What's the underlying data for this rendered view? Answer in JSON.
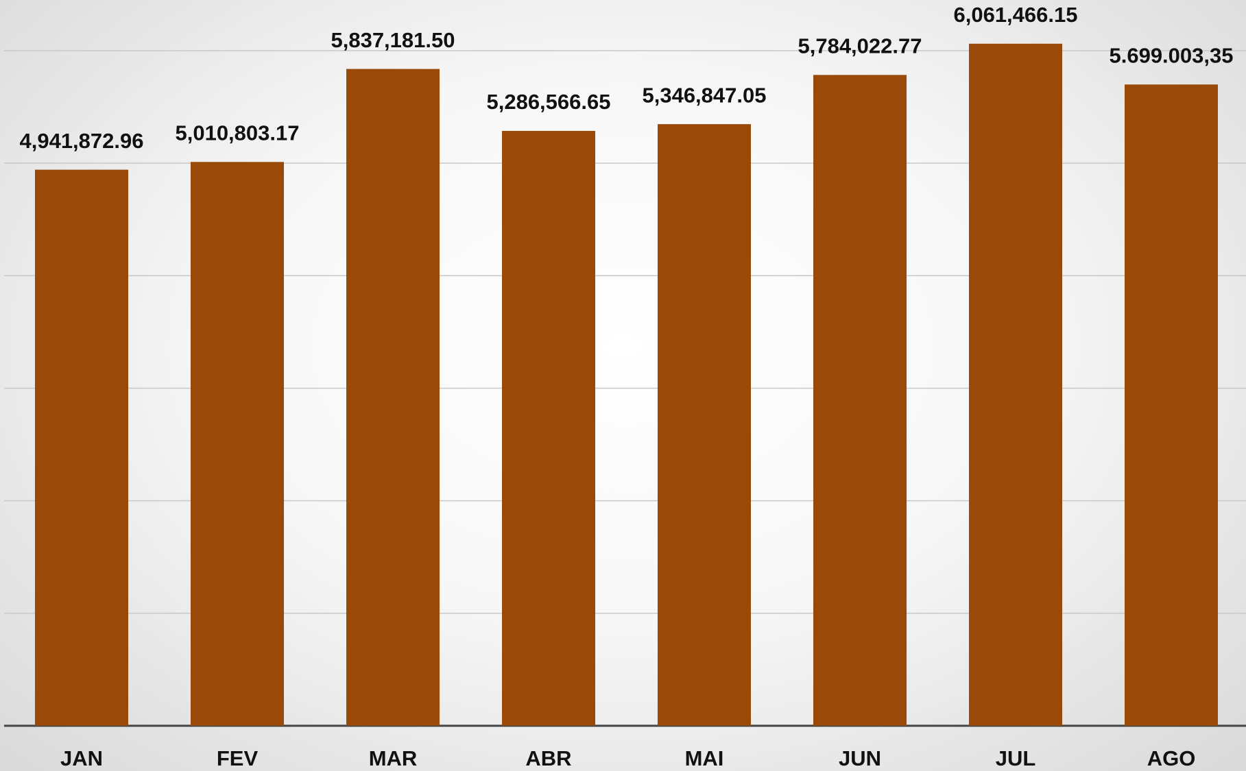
{
  "chart_data": {
    "type": "bar",
    "categories": [
      "JAN",
      "FEV",
      "MAR",
      "ABR",
      "MAI",
      "JUN",
      "JUL",
      "AGO"
    ],
    "values": [
      4941872.96,
      5010803.17,
      5837181.5,
      5286566.65,
      5346847.05,
      5784022.77,
      6061466.15,
      5699003.35
    ],
    "value_labels": [
      "4,941,872.96",
      "5,010,803.17",
      "5,837,181.50",
      "5,286,566.65",
      "5,346,847.05",
      "5,784,022.77",
      "6,061,466.15",
      "5.699.003,35"
    ],
    "color": "#994a08",
    "ylim": [
      0,
      6450000
    ],
    "yticks": [
      0,
      1000000,
      2000000,
      3000000,
      4000000,
      5000000,
      6000000
    ],
    "grid": true
  }
}
